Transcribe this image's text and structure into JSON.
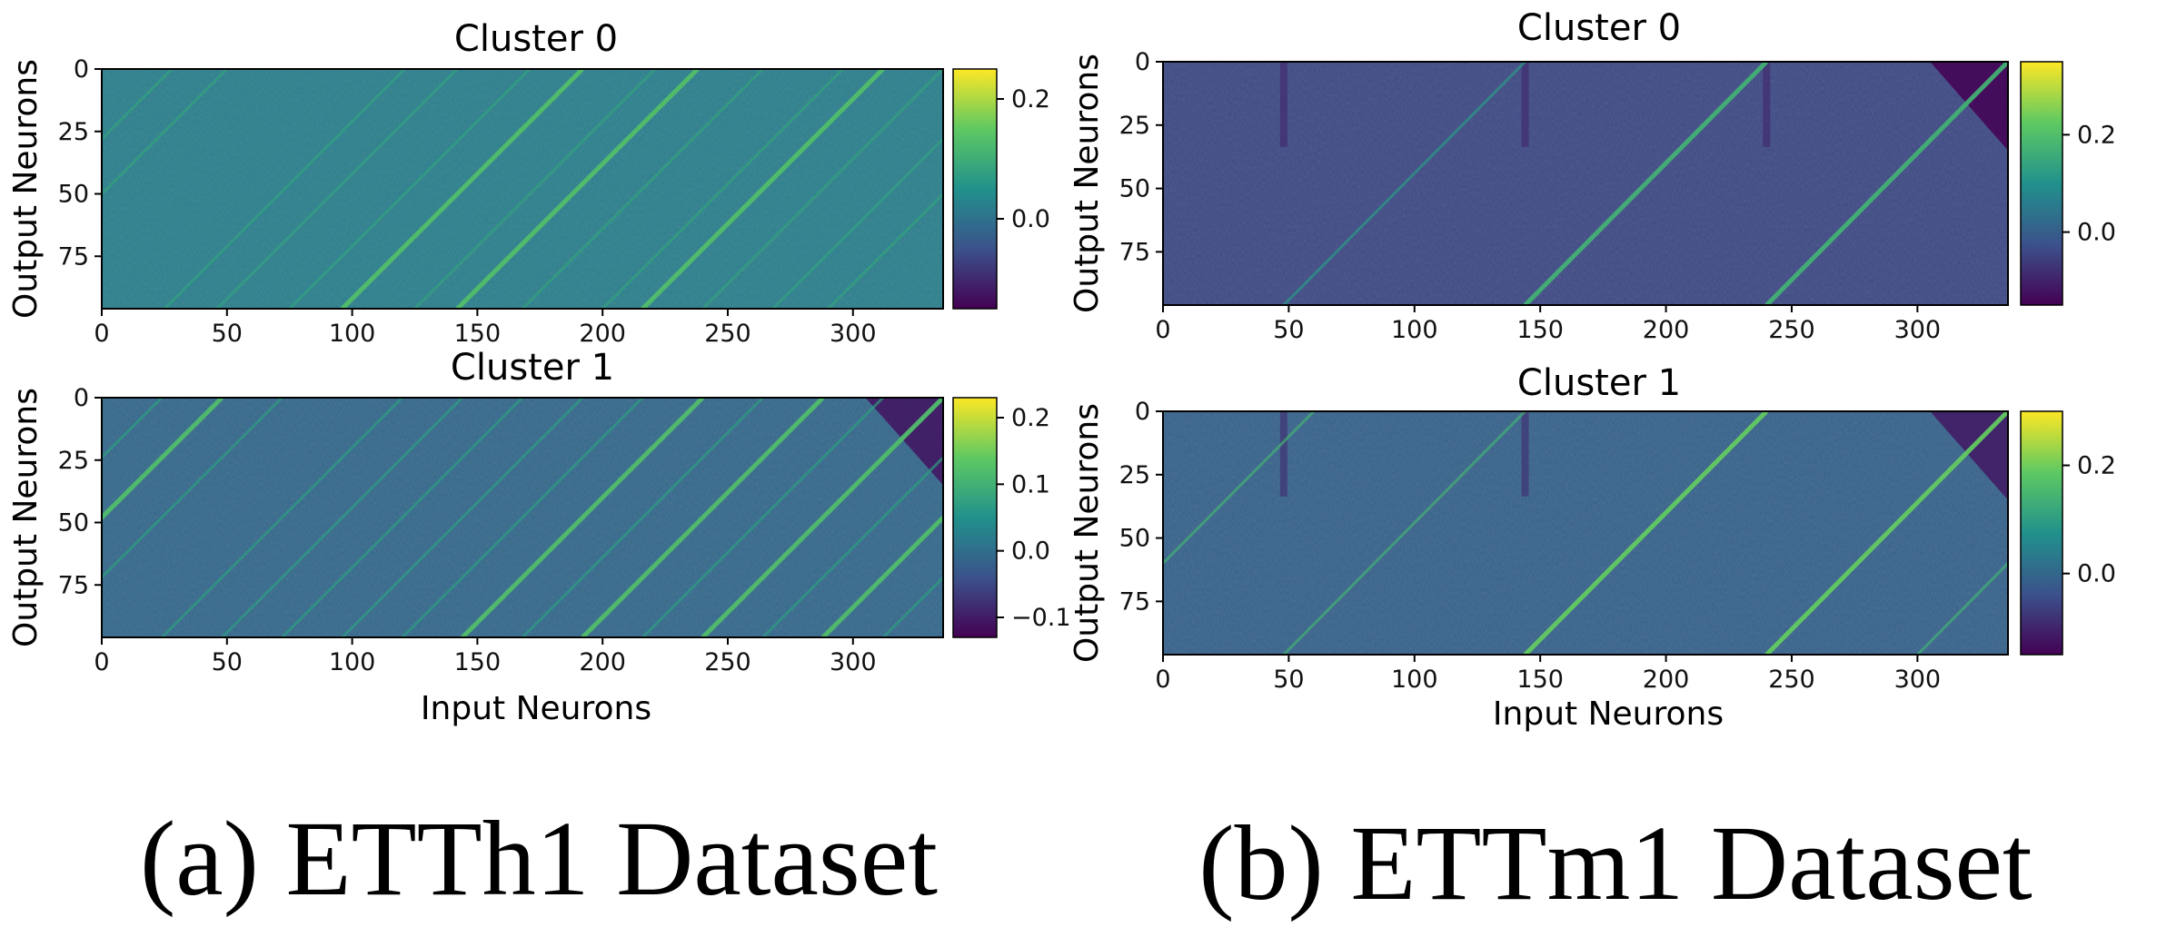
{
  "colormap": [
    "#440154",
    "#3b528b",
    "#21918c",
    "#5ec962",
    "#fde725"
  ],
  "captions": {
    "a": "(a) ETTh1 Dataset",
    "b": "(b) ETTm1 Dataset"
  },
  "chart_data": [
    {
      "type": "heatmap",
      "panel": "a",
      "title": "Cluster 0",
      "xlabel": "",
      "ylabel": "Output Neurons",
      "xticks": [
        0,
        50,
        100,
        150,
        200,
        250,
        300
      ],
      "yticks": [
        0,
        25,
        50,
        75
      ],
      "xlim": [
        0,
        336
      ],
      "ylim": [
        96,
        0
      ],
      "colorbar": {
        "vmin": -0.15,
        "vmax": 0.25,
        "ticks": [
          0.2,
          0.0
        ],
        "tick_labels": [
          "0.2",
          "0.0"
        ]
      },
      "base_value": 0.02,
      "diagonal_offsets": [
        25,
        46,
        75,
        96,
        125,
        142,
        168,
        200,
        216,
        240,
        268,
        290
      ],
      "bright_diagonals": [
        96,
        142,
        216
      ],
      "diagonal_value": 0.08,
      "vertical_stripes": [],
      "corner_value": null
    },
    {
      "type": "heatmap",
      "panel": "a",
      "title": "Cluster 1",
      "xlabel": "Input Neurons",
      "ylabel": "Output Neurons",
      "xticks": [
        0,
        50,
        100,
        150,
        200,
        250,
        300
      ],
      "yticks": [
        0,
        25,
        50,
        75
      ],
      "xlim": [
        0,
        336
      ],
      "ylim": [
        96,
        0
      ],
      "colorbar": {
        "vmin": -0.13,
        "vmax": 0.23,
        "ticks": [
          0.2,
          0.1,
          0.0,
          -0.1
        ],
        "tick_labels": [
          "0.2",
          "0.1",
          "0.0",
          "−0.1"
        ]
      },
      "base_value": -0.01,
      "diagonal_offsets": [
        24,
        48,
        72,
        96,
        120,
        144,
        168,
        192,
        216,
        240,
        264,
        288,
        312
      ],
      "bright_diagonals": [
        144,
        192,
        240,
        288
      ],
      "diagonal_value": 0.07,
      "vertical_stripes": [],
      "corner_value": -0.11
    },
    {
      "type": "heatmap",
      "panel": "b",
      "title": "Cluster 0",
      "xlabel": "",
      "ylabel": "Output Neurons",
      "xticks": [
        0,
        50,
        100,
        150,
        200,
        250,
        300
      ],
      "yticks": [
        0,
        25,
        50,
        75
      ],
      "xlim": [
        0,
        336
      ],
      "ylim": [
        96,
        0
      ],
      "colorbar": {
        "vmin": -0.15,
        "vmax": 0.35,
        "ticks": [
          0.2,
          0.0
        ],
        "tick_labels": [
          "0.2",
          "0.0"
        ]
      },
      "base_value": -0.04,
      "diagonal_offsets": [
        48,
        144,
        240
      ],
      "bright_diagonals": [
        144,
        240
      ],
      "diagonal_value": 0.12,
      "vertical_stripes": [
        48,
        144,
        240
      ],
      "corner_value": -0.15
    },
    {
      "type": "heatmap",
      "panel": "b",
      "title": "Cluster 1",
      "xlabel": "Input Neurons",
      "ylabel": "Output Neurons",
      "xticks": [
        0,
        50,
        100,
        150,
        200,
        250,
        300
      ],
      "yticks": [
        0,
        25,
        50,
        75
      ],
      "xlim": [
        0,
        336
      ],
      "ylim": [
        96,
        0
      ],
      "colorbar": {
        "vmin": -0.15,
        "vmax": 0.3,
        "ticks": [
          0.2,
          0.0
        ],
        "tick_labels": [
          "0.2",
          "0.0"
        ]
      },
      "base_value": -0.01,
      "diagonal_offsets": [
        48,
        144,
        240,
        300
      ],
      "bright_diagonals": [
        144,
        240
      ],
      "diagonal_value": 0.14,
      "vertical_stripes": [
        48,
        144
      ],
      "corner_value": -0.12
    }
  ]
}
